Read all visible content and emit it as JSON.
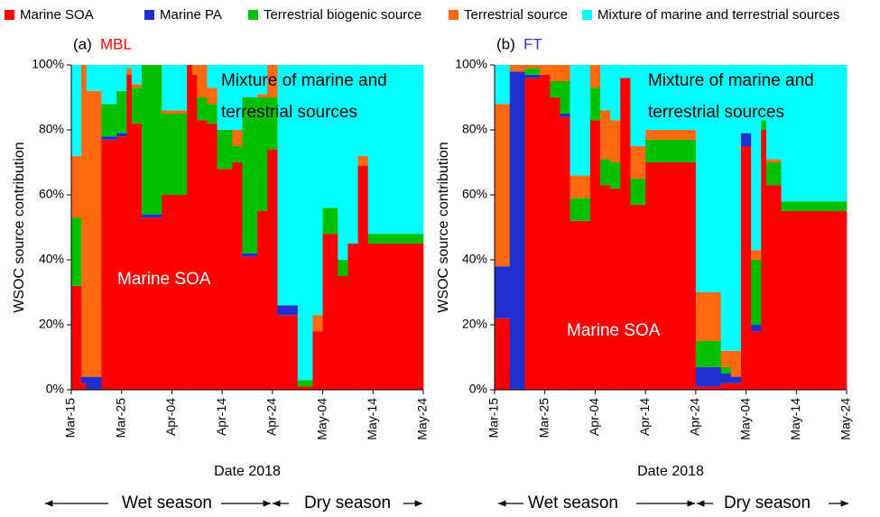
{
  "legend_title": null,
  "chart_data": [
    {
      "type": "stacked-step",
      "label": "(a)",
      "title": "MBL",
      "title_color": "#ff0000",
      "ylabel": "WSOC source contribution",
      "xlabel": "Date 2018",
      "seasons": [
        "Wet season",
        "Dry season"
      ],
      "annotations": [
        "Mixture of marine and",
        "terrestrial sources",
        "Marine SOA"
      ],
      "xlim": [
        0,
        70
      ],
      "xticks": [
        {
          "value": 0,
          "label": "Mar-15"
        },
        {
          "value": 10,
          "label": "Mar-25"
        },
        {
          "value": 20,
          "label": "Apr-04"
        },
        {
          "value": 30,
          "label": "Apr-14"
        },
        {
          "value": 40,
          "label": "Apr-24"
        },
        {
          "value": 50,
          "label": "May-04"
        },
        {
          "value": 60,
          "label": "May-14"
        },
        {
          "value": 70,
          "label": "May-24"
        }
      ],
      "ylim": [
        0,
        100
      ],
      "yticks": [
        {
          "value": 0,
          "label": "0%"
        },
        {
          "value": 20,
          "label": "20%"
        },
        {
          "value": 40,
          "label": "40%"
        },
        {
          "value": 60,
          "label": "60%"
        },
        {
          "value": 80,
          "label": "80%"
        },
        {
          "value": 100,
          "label": "100%"
        }
      ],
      "x": [
        0,
        2,
        3,
        6,
        9,
        11,
        12,
        14,
        18,
        23,
        24,
        25,
        27,
        29,
        32,
        34,
        37,
        39,
        41,
        45,
        48,
        50,
        53,
        55,
        57,
        59
      ],
      "series": [
        {
          "name": "Marine SOA",
          "color": "#ff0000",
          "values": [
            32,
            2,
            0,
            77,
            78,
            97,
            82,
            53,
            60,
            100,
            97,
            83,
            82,
            68,
            70,
            41,
            55,
            74,
            23,
            1,
            18,
            48,
            35,
            45,
            69,
            45
          ]
        },
        {
          "name": "Marine PA",
          "color": "#1f2fd0",
          "values": [
            0,
            2,
            4,
            1,
            1,
            0,
            0,
            1,
            0,
            0,
            0,
            0,
            0,
            0,
            0,
            1,
            0,
            0,
            3,
            0,
            0,
            0,
            0,
            0,
            0,
            0
          ]
        },
        {
          "name": "Terrestrial biogenic source",
          "color": "#00c000",
          "values": [
            21,
            0,
            0,
            10,
            13,
            0,
            11,
            46,
            25,
            0,
            0,
            7,
            6,
            12,
            5,
            48,
            35,
            16,
            0,
            2,
            0,
            8,
            5,
            0,
            0,
            3
          ]
        },
        {
          "name": "Terrestrial source",
          "color": "#ff6a10",
          "values": [
            19,
            96,
            88,
            0,
            0,
            2,
            1,
            0,
            1,
            0,
            3,
            10,
            5,
            0,
            5,
            0,
            1,
            10,
            0,
            0,
            5,
            0,
            0,
            0,
            3,
            0
          ]
        },
        {
          "name": "Mixture of marine and terrestrial sources",
          "color": "#00ffff",
          "values": [
            28,
            0,
            8,
            12,
            8,
            1,
            6,
            0,
            14,
            0,
            0,
            0,
            7,
            20,
            20,
            10,
            9,
            0,
            74,
            97,
            77,
            44,
            60,
            55,
            28,
            52
          ]
        }
      ]
    },
    {
      "type": "stacked-step",
      "label": "(b)",
      "title": "FT",
      "title_color": "#3333dd",
      "ylabel": "WSOC source contribution",
      "xlabel": "Date 2018",
      "seasons": [
        "Wet season",
        "Dry season"
      ],
      "annotations": [
        "Mixture of marine and",
        "terrestrial sources",
        "Marine SOA"
      ],
      "xlim": [
        0,
        70
      ],
      "xticks": [
        {
          "value": 0,
          "label": "Mar-15"
        },
        {
          "value": 10,
          "label": "Mar-25"
        },
        {
          "value": 20,
          "label": "Apr-04"
        },
        {
          "value": 30,
          "label": "Apr-14"
        },
        {
          "value": 40,
          "label": "Apr-24"
        },
        {
          "value": 50,
          "label": "May-04"
        },
        {
          "value": 60,
          "label": "May-14"
        },
        {
          "value": 70,
          "label": "May-24"
        }
      ],
      "ylim": [
        0,
        100
      ],
      "yticks": [
        {
          "value": 0,
          "label": "0%"
        },
        {
          "value": 20,
          "label": "20%"
        },
        {
          "value": 40,
          "label": "40%"
        },
        {
          "value": 60,
          "label": "60%"
        },
        {
          "value": 80,
          "label": "80%"
        },
        {
          "value": 100,
          "label": "100%"
        }
      ],
      "x": [
        0,
        3,
        6,
        9,
        11,
        13,
        15,
        19,
        21,
        23,
        25,
        27,
        30,
        40,
        45,
        47,
        49,
        51,
        53,
        54,
        57
      ],
      "series": [
        {
          "name": "Marine SOA",
          "color": "#ff0000",
          "values": [
            22,
            0,
            96,
            97,
            90,
            84,
            52,
            83,
            63,
            62,
            96,
            57,
            70,
            1,
            2,
            2,
            75,
            18,
            80,
            63,
            55
          ]
        },
        {
          "name": "Marine PA",
          "color": "#1f2fd0",
          "values": [
            16,
            98,
            1,
            0,
            0,
            1,
            0,
            0,
            0,
            0,
            0,
            0,
            0,
            6,
            3,
            2,
            4,
            2,
            0,
            0,
            0
          ]
        },
        {
          "name": "Terrestrial biogenic source",
          "color": "#00c000",
          "values": [
            0,
            0,
            2,
            0,
            5,
            10,
            7,
            10,
            8,
            8,
            0,
            8,
            7,
            8,
            2,
            0,
            0,
            20,
            3,
            7,
            3
          ]
        },
        {
          "name": "Terrestrial source",
          "color": "#ff6a10",
          "values": [
            50,
            2,
            1,
            3,
            5,
            5,
            7,
            7,
            15,
            13,
            0,
            10,
            3,
            15,
            5,
            8,
            0,
            3,
            0,
            1,
            0
          ]
        },
        {
          "name": "Mixture of marine and terrestrial sources",
          "color": "#00ffff",
          "values": [
            12,
            0,
            0,
            0,
            0,
            0,
            34,
            0,
            14,
            17,
            4,
            25,
            20,
            70,
            88,
            88,
            21,
            57,
            17,
            29,
            42
          ]
        }
      ]
    }
  ]
}
